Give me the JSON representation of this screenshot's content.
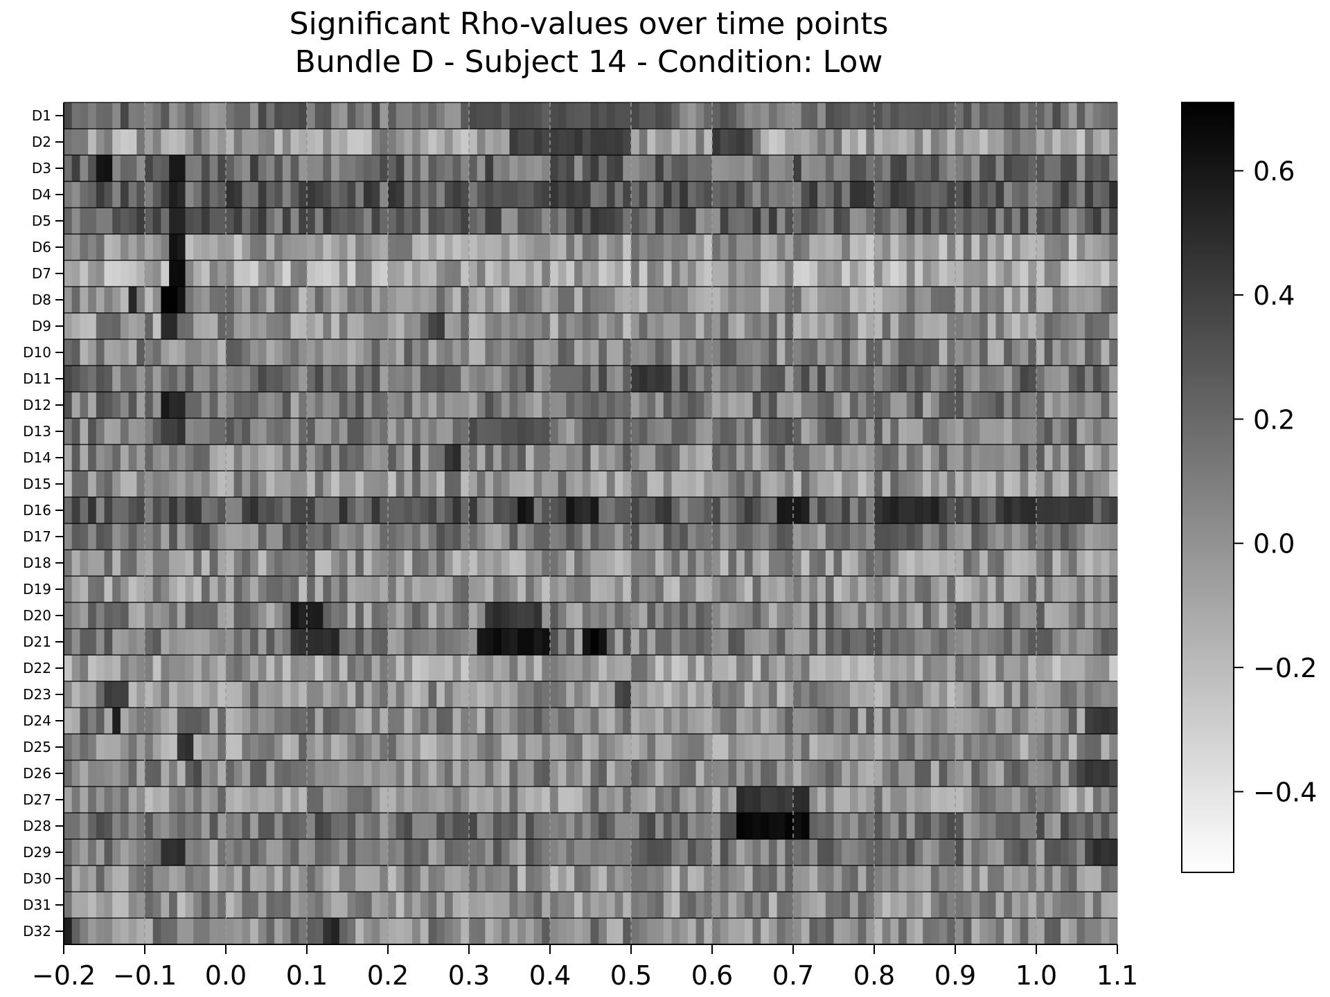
{
  "chart_data": {
    "type": "heatmap",
    "title": "Significant Rho-values over time points",
    "subtitle": "Bundle D - Subject 14 - Condition: Low",
    "xlabel": "",
    "ylabel": "",
    "rows": [
      "D1",
      "D2",
      "D3",
      "D4",
      "D5",
      "D6",
      "D7",
      "D8",
      "D9",
      "D10",
      "D11",
      "D12",
      "D13",
      "D14",
      "D15",
      "D16",
      "D17",
      "D18",
      "D19",
      "D20",
      "D21",
      "D22",
      "D23",
      "D24",
      "D25",
      "D26",
      "D27",
      "D28",
      "D29",
      "D30",
      "D31",
      "D32"
    ],
    "xlim": [
      -0.2,
      1.1
    ],
    "x_ticks": [
      "−0.2",
      "−0.1",
      "0.0",
      "0.1",
      "0.2",
      "0.3",
      "0.4",
      "0.5",
      "0.6",
      "0.7",
      "0.8",
      "0.9",
      "1.0",
      "1.1"
    ],
    "x_tick_values": [
      -0.2,
      -0.1,
      0.0,
      0.1,
      0.2,
      0.3,
      0.4,
      0.5,
      0.6,
      0.7,
      0.8,
      0.9,
      1.0,
      1.1
    ],
    "time_step": 0.01,
    "colorbar": {
      "range": [
        -0.53,
        0.71
      ],
      "ticks": [
        "−0.4",
        "−0.2",
        "0.0",
        "0.2",
        "0.4",
        "0.6"
      ],
      "tick_values": [
        -0.4,
        -0.2,
        0.0,
        0.2,
        0.4,
        0.6
      ],
      "colormap": "gray_r"
    },
    "dashed_vlines_at_ticks": true,
    "row_baselines": [
      0.15,
      -0.05,
      0.2,
      0.25,
      0.2,
      -0.05,
      -0.1,
      0.0,
      0.0,
      0.05,
      0.15,
      0.1,
      0.1,
      0.05,
      0.0,
      0.25,
      0.1,
      0.0,
      0.0,
      0.05,
      0.1,
      -0.05,
      0.0,
      0.05,
      0.0,
      0.05,
      0.0,
      0.15,
      0.1,
      0.0,
      0.0,
      0.05
    ],
    "hotspots": [
      {
        "row": "D1",
        "t": [
          0.3,
          0.55
        ],
        "v": 0.3
      },
      {
        "row": "D1",
        "t": [
          0.75,
          0.9
        ],
        "v": 0.25
      },
      {
        "row": "D2",
        "t": [
          0.35,
          0.5
        ],
        "v": 0.4
      },
      {
        "row": "D2",
        "t": [
          0.6,
          0.65
        ],
        "v": 0.4
      },
      {
        "row": "D3",
        "t": [
          -0.16,
          -0.14
        ],
        "v": 0.65
      },
      {
        "row": "D3",
        "t": [
          -0.07,
          -0.05
        ],
        "v": 0.55
      },
      {
        "row": "D4",
        "t": [
          0.38,
          0.45
        ],
        "v": 0.4
      },
      {
        "row": "D4",
        "t": [
          -0.07,
          -0.05
        ],
        "v": 0.55
      },
      {
        "row": "D5",
        "t": [
          -0.07,
          -0.05
        ],
        "v": 0.5
      },
      {
        "row": "D5",
        "t": [
          0.45,
          0.48
        ],
        "v": 0.4
      },
      {
        "row": "D6",
        "t": [
          -0.07,
          -0.05
        ],
        "v": 0.6
      },
      {
        "row": "D7",
        "t": [
          -0.07,
          -0.05
        ],
        "v": 0.6
      },
      {
        "row": "D8",
        "t": [
          -0.08,
          -0.05
        ],
        "v": 0.65
      },
      {
        "row": "D8",
        "t": [
          -0.12,
          -0.11
        ],
        "v": 0.55
      },
      {
        "row": "D9",
        "t": [
          -0.08,
          -0.06
        ],
        "v": 0.45
      },
      {
        "row": "D9",
        "t": [
          0.25,
          0.27
        ],
        "v": 0.4
      },
      {
        "row": "D11",
        "t": [
          0.5,
          0.55
        ],
        "v": 0.45
      },
      {
        "row": "D12",
        "t": [
          -0.08,
          -0.05
        ],
        "v": 0.55
      },
      {
        "row": "D13",
        "t": [
          -0.08,
          -0.05
        ],
        "v": 0.45
      },
      {
        "row": "D13",
        "t": [
          0.3,
          0.4
        ],
        "v": 0.3
      },
      {
        "row": "D14",
        "t": [
          0.27,
          0.29
        ],
        "v": 0.45
      },
      {
        "row": "D14",
        "t": [
          0.23,
          0.24
        ],
        "v": 0.4
      },
      {
        "row": "D16",
        "t": [
          0.36,
          0.38
        ],
        "v": 0.6
      },
      {
        "row": "D16",
        "t": [
          0.42,
          0.46
        ],
        "v": 0.55
      },
      {
        "row": "D16",
        "t": [
          0.68,
          0.72
        ],
        "v": 0.6
      },
      {
        "row": "D16",
        "t": [
          0.8,
          0.88
        ],
        "v": 0.5
      },
      {
        "row": "D16",
        "t": [
          0.95,
          1.05
        ],
        "v": 0.45
      },
      {
        "row": "D20",
        "t": [
          0.08,
          0.12
        ],
        "v": 0.55
      },
      {
        "row": "D20",
        "t": [
          0.32,
          0.39
        ],
        "v": 0.45
      },
      {
        "row": "D21",
        "t": [
          0.31,
          0.4
        ],
        "v": 0.6
      },
      {
        "row": "D21",
        "t": [
          0.44,
          0.47
        ],
        "v": 0.65
      },
      {
        "row": "D21",
        "t": [
          0.08,
          0.14
        ],
        "v": 0.5
      },
      {
        "row": "D23",
        "t": [
          -0.15,
          -0.12
        ],
        "v": 0.45
      },
      {
        "row": "D23",
        "t": [
          0.48,
          0.5
        ],
        "v": 0.4
      },
      {
        "row": "D24",
        "t": [
          -0.14,
          -0.13
        ],
        "v": 0.55
      },
      {
        "row": "D24",
        "t": [
          1.06,
          1.1
        ],
        "v": 0.45
      },
      {
        "row": "D25",
        "t": [
          -0.06,
          -0.04
        ],
        "v": 0.45
      },
      {
        "row": "D26",
        "t": [
          -0.04,
          -0.03
        ],
        "v": 0.4
      },
      {
        "row": "D26",
        "t": [
          1.05,
          1.1
        ],
        "v": 0.4
      },
      {
        "row": "D27",
        "t": [
          0.63,
          0.72
        ],
        "v": 0.45
      },
      {
        "row": "D28",
        "t": [
          0.63,
          0.72
        ],
        "v": 0.65
      },
      {
        "row": "D29",
        "t": [
          -0.08,
          -0.05
        ],
        "v": 0.45
      },
      {
        "row": "D29",
        "t": [
          1.06,
          1.1
        ],
        "v": 0.45
      },
      {
        "row": "D32",
        "t": [
          -0.2,
          -0.19
        ],
        "v": 0.55
      },
      {
        "row": "D32",
        "t": [
          0.12,
          0.14
        ],
        "v": 0.5
      }
    ]
  }
}
